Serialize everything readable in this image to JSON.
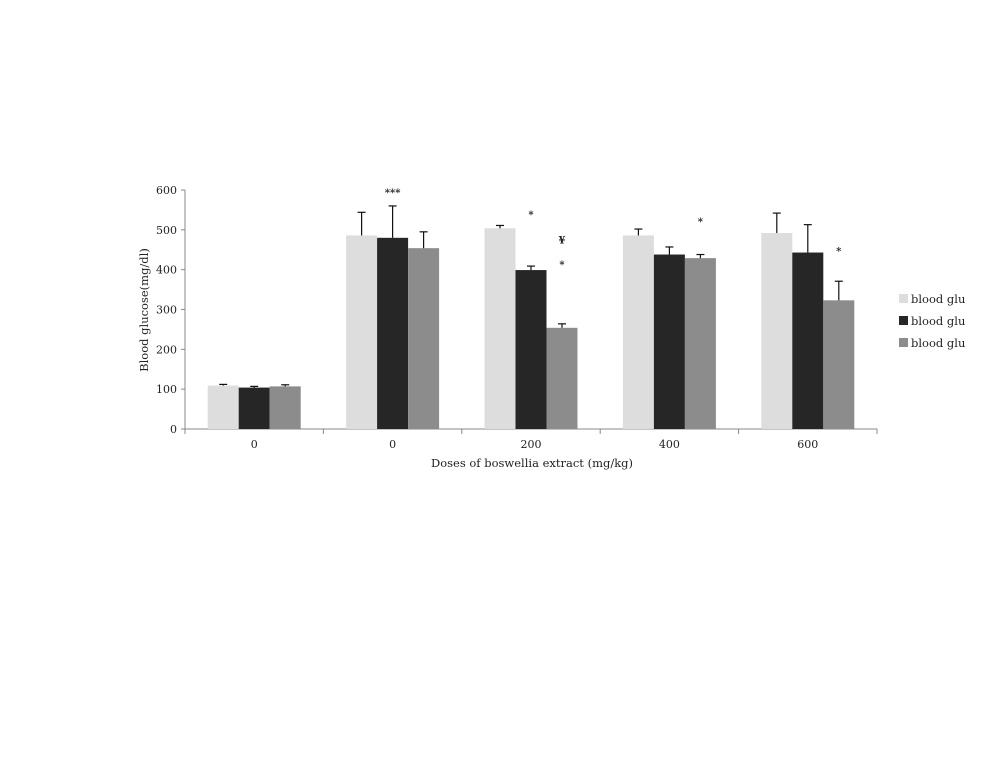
{
  "chart_data": {
    "type": "bar",
    "title": "",
    "xlabel": "Doses of boswellia extract (mg/kg)",
    "ylabel": "Blood glucose(mg/dl)",
    "ylim": [
      0,
      600
    ],
    "yticks": [
      0,
      100,
      200,
      300,
      400,
      500,
      600
    ],
    "categories": [
      "0",
      "0",
      "200",
      "400",
      "600"
    ],
    "series": [
      {
        "name": "blood glu",
        "color": "#dddddd",
        "values": [
          109,
          486,
          504,
          486,
          492
        ],
        "errors": [
          3,
          58,
          7,
          16,
          50
        ]
      },
      {
        "name": "blood glu",
        "color": "#262626",
        "values": [
          104,
          480,
          399,
          438,
          443
        ],
        "errors": [
          3,
          80,
          10,
          19,
          70
        ]
      },
      {
        "name": "blood glu",
        "color": "#8c8c8c",
        "values": [
          107,
          454,
          254,
          429,
          323
        ],
        "errors": [
          4,
          41,
          10,
          9,
          48
        ]
      }
    ],
    "annotations": [
      {
        "text": "***",
        "category": 1,
        "series": 1,
        "value": 585
      },
      {
        "text": "*",
        "category": 2,
        "series": 1,
        "value": 530
      },
      {
        "text": "¥",
        "category": 2,
        "series": 2,
        "value": 466
      },
      {
        "text": "*",
        "category": 2,
        "series": 2,
        "value": 404
      },
      {
        "text": "*",
        "category": 3,
        "series": 2,
        "value": 512
      },
      {
        "text": "*",
        "category": 4,
        "series": 2,
        "value": 438
      }
    ],
    "legend_position": "right",
    "grid": false
  }
}
